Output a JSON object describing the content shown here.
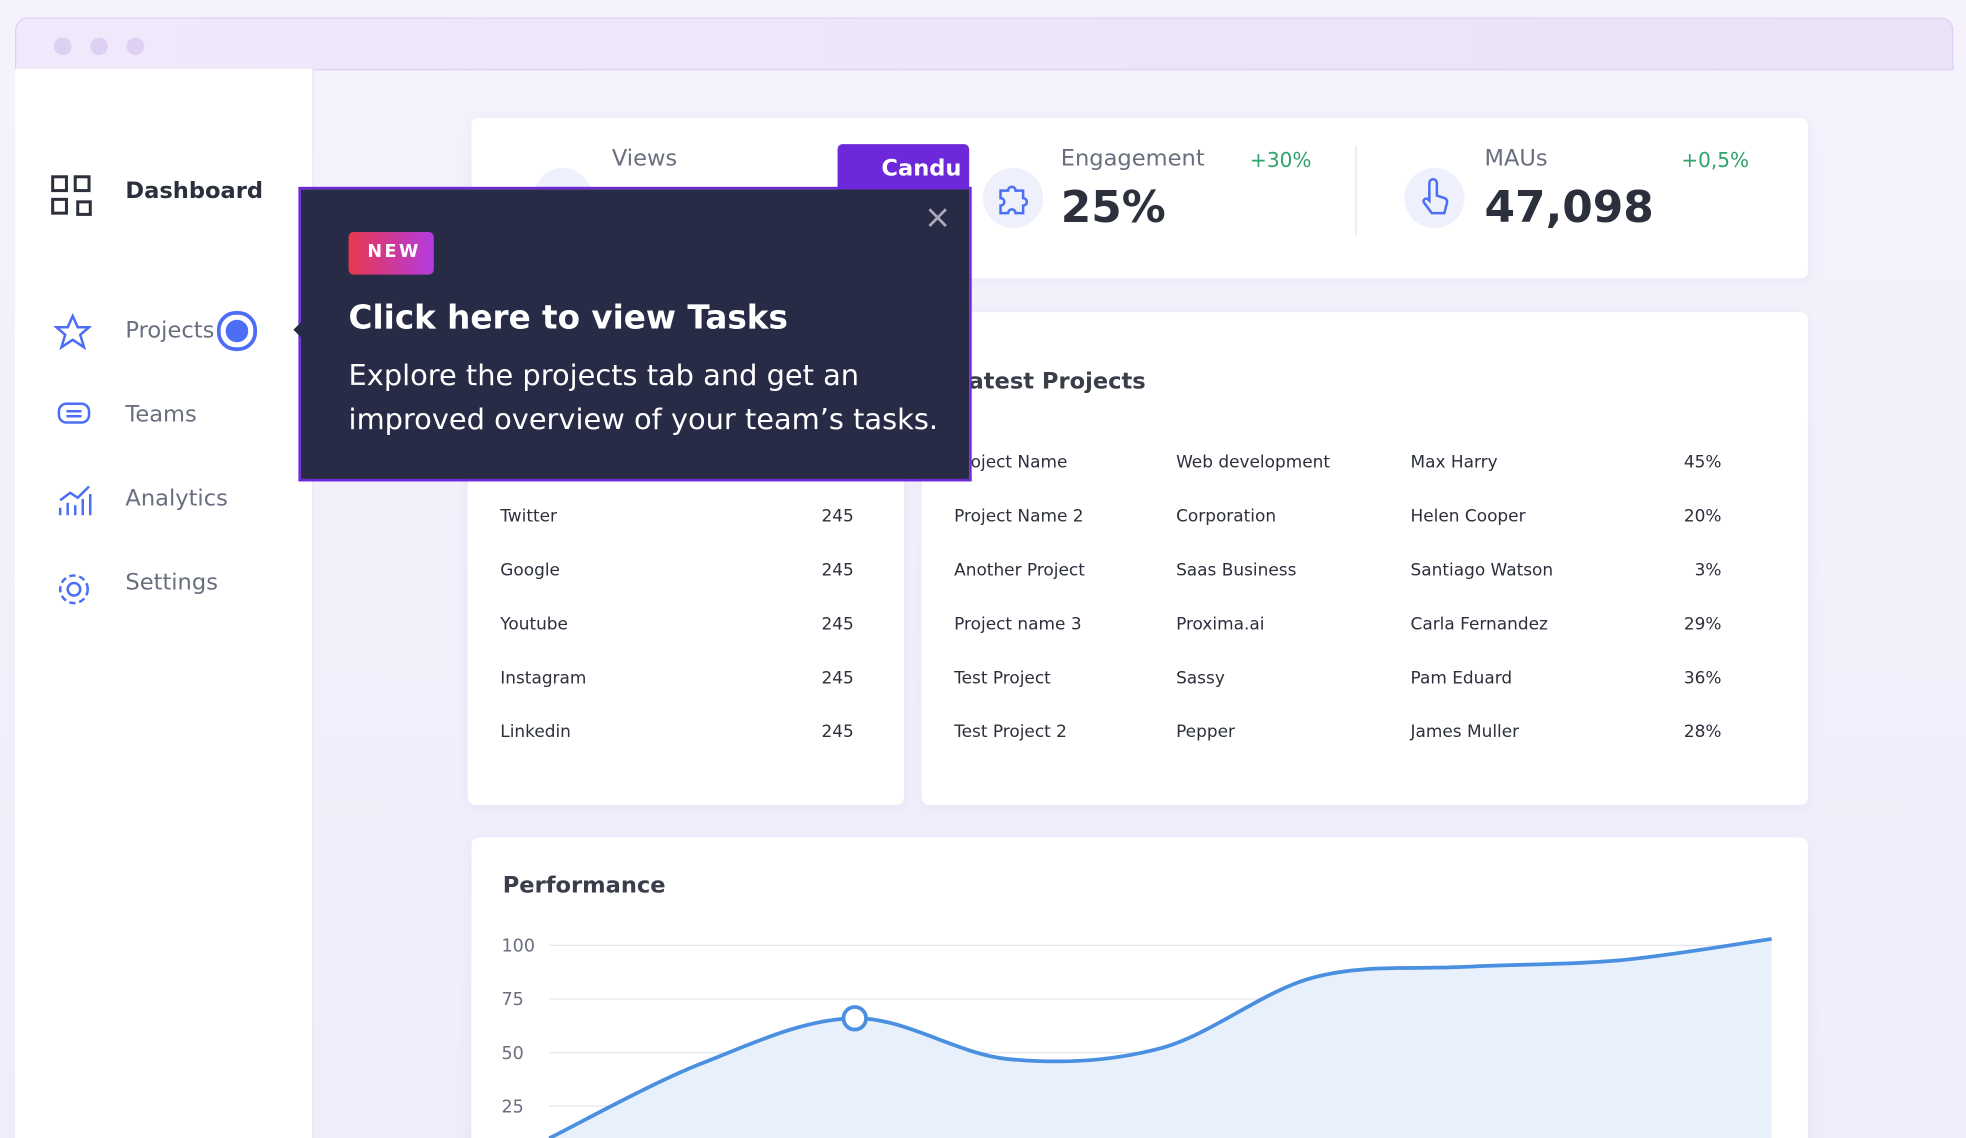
{
  "sidebar": {
    "items": [
      "Dashboard",
      "Projects",
      "Teams",
      "Analytics",
      "Settings"
    ]
  },
  "stats": [
    {
      "label": "Views"
    },
    {
      "label": "Engagement",
      "value": "25%",
      "change": "+30%"
    },
    {
      "label": "MAUs",
      "value": "47,098",
      "change": "+0,5%"
    }
  ],
  "tooltip": {
    "tag": "Candu",
    "badge": "NEW",
    "title": "Click here to view Tasks",
    "body": "Explore the projects tab and get an improved overview of your team’s tasks."
  },
  "sources": {
    "rows": [
      [
        "Twitter",
        "245"
      ],
      [
        "Google",
        "245"
      ],
      [
        "Youtube",
        "245"
      ],
      [
        "Instagram",
        "245"
      ],
      [
        "Linkedin",
        "245"
      ]
    ]
  },
  "projects": {
    "title": "Latest Projects",
    "rows": [
      [
        "Project Name",
        "Web development",
        "Max Harry",
        "45%"
      ],
      [
        "Project Name 2",
        "Corporation",
        "Helen Cooper",
        "20%"
      ],
      [
        "Another Project",
        "Saas Business",
        "Santiago Watson",
        "3%"
      ],
      [
        "Project name 3",
        "Proxima.ai",
        "Carla Fernandez",
        "29%"
      ],
      [
        "Test Project",
        "Sassy",
        "Pam Eduard",
        "36%"
      ],
      [
        "Test Project 2",
        "Pepper",
        "James Muller",
        "28%"
      ]
    ]
  },
  "chart_data": {
    "type": "area",
    "title": "Performance",
    "values": [
      10,
      45,
      66,
      47,
      52,
      85,
      90,
      93,
      103
    ],
    "color": "#4a8fe0",
    "ylim": [
      0,
      100
    ],
    "yticks": [
      100,
      75,
      50,
      25
    ],
    "grid": true,
    "highlight": 2
  }
}
